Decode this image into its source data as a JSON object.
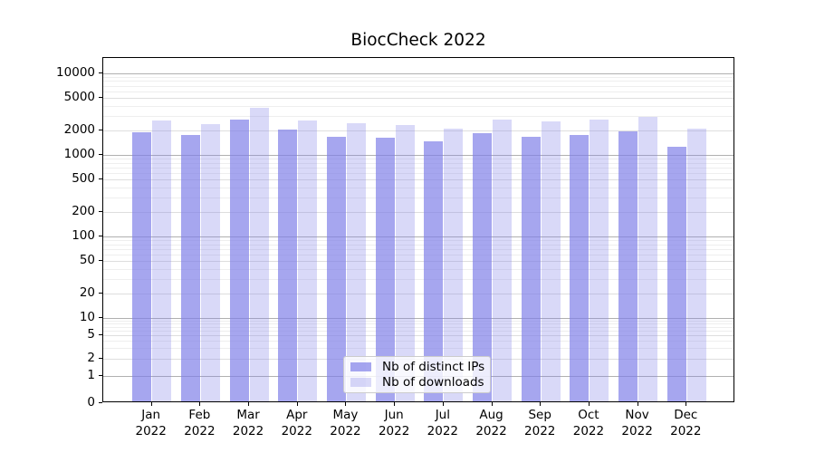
{
  "title": "BiocCheck 2022",
  "legend": {
    "items": [
      {
        "label": "Nb of distinct IPs",
        "series": "ips"
      },
      {
        "label": "Nb of downloads",
        "series": "downloads"
      }
    ]
  },
  "colors": {
    "bar_base_rgb": "128,128,232",
    "ips_alpha": 0.7,
    "downloads_alpha": 0.3,
    "major_grid": "#b0b0b0",
    "labeled_minor_grid": "#dedede",
    "minor_grid": "#eeeeee",
    "spine": "#000000",
    "text": "#000000"
  },
  "chart_data": {
    "type": "bar",
    "title": "BiocCheck 2022",
    "categories": [
      "Jan 2022",
      "Feb 2022",
      "Mar 2022",
      "Apr 2022",
      "May 2022",
      "Jun 2022",
      "Jul 2022",
      "Aug 2022",
      "Sep 2022",
      "Oct 2022",
      "Nov 2022",
      "Dec 2022"
    ],
    "series": [
      {
        "name": "Nb of distinct IPs",
        "key": "ips",
        "values": [
          1800,
          1670,
          2570,
          1950,
          1590,
          1550,
          1400,
          1760,
          1590,
          1670,
          1850,
          1200
        ]
      },
      {
        "name": "Nb of downloads",
        "key": "downloads",
        "values": [
          2500,
          2270,
          3600,
          2480,
          2330,
          2210,
          2000,
          2580,
          2450,
          2580,
          2800,
          2000
        ]
      }
    ],
    "yscale": "symlog",
    "y_ticks": [
      0,
      1,
      2,
      5,
      10,
      20,
      50,
      100,
      200,
      500,
      1000,
      2000,
      5000,
      10000
    ],
    "ylim": [
      0,
      15000
    ],
    "xlabel": "",
    "ylabel": "",
    "grid": true,
    "legend_position": "lower center"
  }
}
